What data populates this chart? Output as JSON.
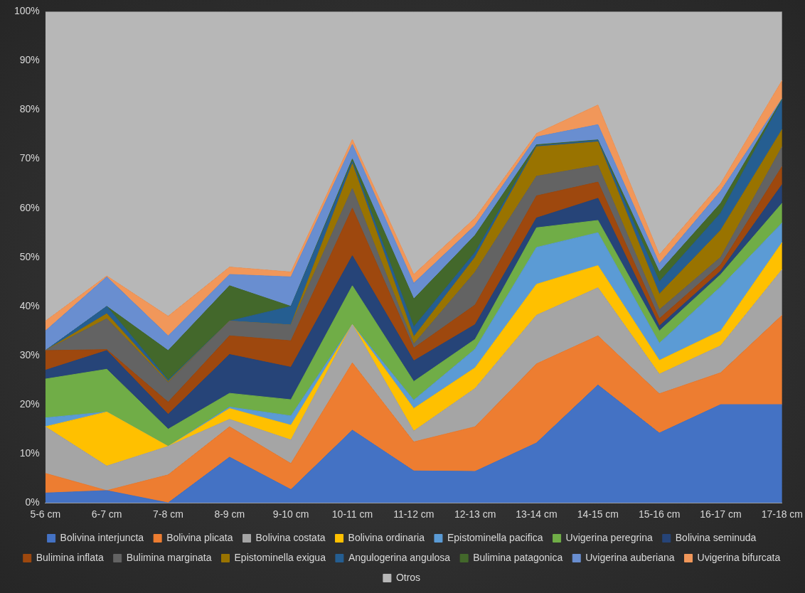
{
  "chart_data": {
    "type": "area",
    "stacked": true,
    "legend": "bottom",
    "grid": false,
    "categories": [
      "5-6 cm",
      "6-7 cm",
      "7-8 cm",
      "8-9 cm",
      "9-10 cm",
      "10-11 cm",
      "11-12 cm",
      "12-13 cm",
      "13-14 cm",
      "14-15 cm",
      "15-16 cm",
      "16-17 cm",
      "17-18 cm"
    ],
    "ylim": [
      0,
      100
    ],
    "yticks": [
      {
        "value": 0,
        "label": "0%"
      },
      {
        "value": 10,
        "label": "10%"
      },
      {
        "value": 20,
        "label": "20%"
      },
      {
        "value": 30,
        "label": "30%"
      },
      {
        "value": 40,
        "label": "40%"
      },
      {
        "value": 50,
        "label": "50%"
      },
      {
        "value": 60,
        "label": "60%"
      },
      {
        "value": 70,
        "label": "70%"
      },
      {
        "value": 80,
        "label": "80%"
      },
      {
        "value": 90,
        "label": "90%"
      },
      {
        "value": 100,
        "label": "100%"
      }
    ],
    "series": [
      {
        "name": "Bolivina interjuncta",
        "color": "#4472c4",
        "values": [
          2,
          2.5,
          0,
          9.3,
          2.7,
          14.8,
          6.5,
          6.4,
          12.2,
          24,
          14.2,
          20,
          20
        ]
      },
      {
        "name": "Bolivina plicata",
        "color": "#ed7d31",
        "values": [
          4,
          0,
          5.7,
          6.2,
          5.3,
          13.7,
          5.9,
          9.1,
          16.1,
          10,
          8,
          6.5,
          18.2
        ]
      },
      {
        "name": "Bolivina costata",
        "color": "#a5a5a5",
        "values": [
          9.5,
          5,
          5.8,
          1.5,
          4.8,
          7.8,
          2.2,
          7.8,
          9.9,
          9.8,
          4,
          5.5,
          9.3
        ]
      },
      {
        "name": "Bolivina ordinaria",
        "color": "#ffc000",
        "values": [
          0,
          11,
          0,
          2.2,
          3,
          0,
          4.6,
          4.2,
          6.3,
          4.5,
          2.8,
          3,
          5.5
        ]
      },
      {
        "name": "Epistominella pacifica",
        "color": "#5b9bd5",
        "values": [
          1.8,
          0,
          0,
          0.3,
          1.9,
          0,
          1.7,
          3.8,
          7.5,
          6.7,
          3.5,
          9,
          4
        ]
      },
      {
        "name": "Uvigerina peregrina",
        "color": "#70ad47",
        "values": [
          7.9,
          8.7,
          3.5,
          2.8,
          3.3,
          7.9,
          3.8,
          2,
          4,
          2.5,
          2.5,
          2.5,
          4
        ]
      },
      {
        "name": "Bolivina seminuda",
        "color": "#264478",
        "values": [
          1.8,
          3.8,
          3,
          7.9,
          6.6,
          6.1,
          4.2,
          3,
          2,
          4.5,
          1,
          0.7,
          3.8
        ]
      },
      {
        "name": "Bulimina inflata",
        "color": "#9e480e",
        "values": [
          4,
          0.2,
          2.5,
          3.8,
          5.4,
          9.7,
          2.6,
          4,
          4.5,
          3.3,
          1.5,
          1.3,
          3.7
        ]
      },
      {
        "name": "Bulimina marginata",
        "color": "#636363",
        "values": [
          0,
          6.3,
          4,
          3,
          3.2,
          4,
          0.8,
          6.7,
          4,
          3.4,
          1.8,
          1.5,
          4
        ]
      },
      {
        "name": "Epistominella exigua",
        "color": "#997300",
        "values": [
          0,
          1,
          0.2,
          0,
          0,
          5,
          1.5,
          3,
          6,
          4.8,
          3.2,
          5.5,
          3.5
        ]
      },
      {
        "name": "Angulogerina angulosa",
        "color": "#255e91",
        "values": [
          0,
          1.5,
          0.3,
          0,
          3.8,
          0.5,
          2,
          1,
          0.2,
          0.3,
          2.5,
          3.5,
          6
        ]
      },
      {
        "name": "Bulimina patagonica",
        "color": "#43682b",
        "values": [
          0,
          0,
          6,
          7.2,
          0,
          0.5,
          5.7,
          3.5,
          0.2,
          0.1,
          2,
          2,
          0.2
        ]
      },
      {
        "name": "Uvigerina auberiana",
        "color": "#698ed0",
        "values": [
          4,
          6,
          3,
          2.3,
          6,
          3,
          3.2,
          2,
          1.6,
          3.1,
          1.7,
          2.5,
          0.1
        ]
      },
      {
        "name": "Uvigerina bifurcata",
        "color": "#f1975a",
        "values": [
          2,
          0.2,
          4,
          1.5,
          1,
          1,
          1.8,
          1.5,
          0.7,
          4,
          1.8,
          1.5,
          3.7
        ]
      },
      {
        "name": "Otros",
        "color": "#b7b7b7",
        "values": [
          63,
          53.8,
          62,
          52,
          53,
          26,
          53.5,
          42,
          24.8,
          19,
          49.5,
          35,
          14
        ]
      }
    ]
  }
}
